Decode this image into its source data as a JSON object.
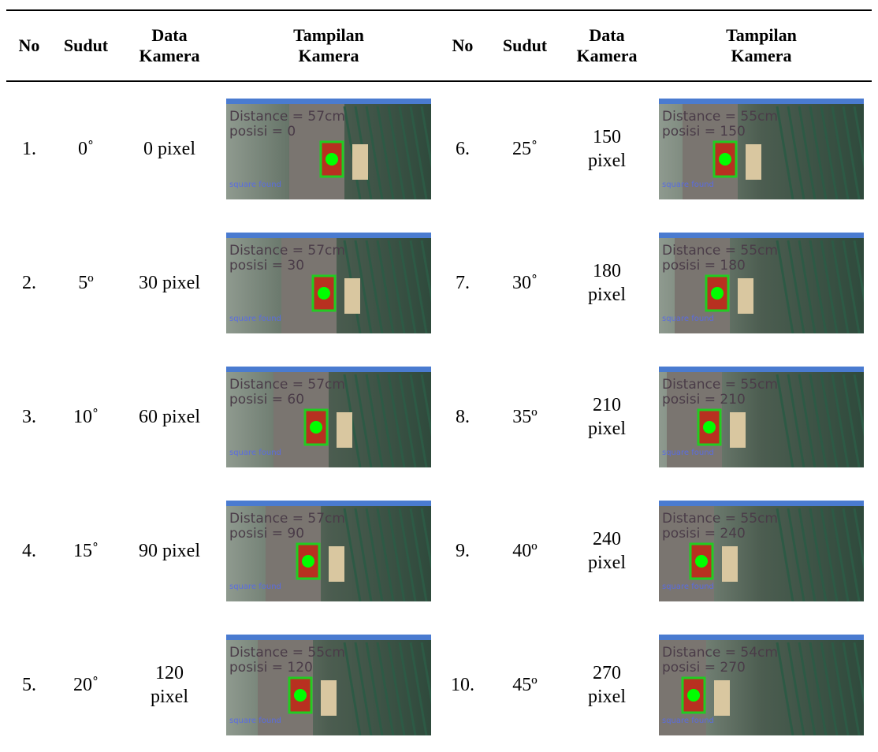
{
  "header": {
    "columns": [
      "No",
      "Sudut",
      "Data Kamera",
      "Tampilan Kamera",
      "No",
      "Sudut",
      "Data Kamera",
      "Tampilan Kamera"
    ]
  },
  "table": {
    "left": [
      {
        "no": "1.",
        "sudut": "0˚",
        "data": "0 pixel",
        "camera": {
          "distance": "Distance = 57cm",
          "posisi": "posisi = 0",
          "status": "square found"
        }
      },
      {
        "no": "2.",
        "sudut": "5º",
        "data": "30 pixel",
        "camera": {
          "distance": "Distance = 57cm",
          "posisi": "posisi = 30",
          "status": "square found"
        }
      },
      {
        "no": "3.",
        "sudut": "10˚",
        "data": "60 pixel",
        "camera": {
          "distance": "Distance = 57cm",
          "posisi": "posisi = 60",
          "status": "square found"
        }
      },
      {
        "no": "4.",
        "sudut": "15˚",
        "data": "90 pixel",
        "camera": {
          "distance": "Distance = 57cm",
          "posisi": "posisi = 90",
          "status": "square found"
        }
      },
      {
        "no": "5.",
        "sudut": "20˚",
        "data": "120 pixel",
        "camera": {
          "distance": "Distance = 55cm",
          "posisi": "posisi = 120",
          "status": "square found"
        }
      }
    ],
    "right": [
      {
        "no": "6.",
        "sudut": "25˚",
        "data": "150 pixel",
        "camera": {
          "distance": "Distance = 55cm",
          "posisi": "posisi = 150",
          "status": "square found"
        }
      },
      {
        "no": "7.",
        "sudut": "30˚",
        "data": "180 pixel",
        "camera": {
          "distance": "Distance = 55cm",
          "posisi": "posisi = 180",
          "status": "square found"
        }
      },
      {
        "no": "8.",
        "sudut": "35º",
        "data": "210 pixel",
        "camera": {
          "distance": "Distance = 55cm",
          "posisi": "posisi = 210",
          "status": "square found"
        }
      },
      {
        "no": "9.",
        "sudut": "40º",
        "data": "240 pixel",
        "camera": {
          "distance": "Distance = 55cm",
          "posisi": "posisi = 240",
          "status": "square found"
        }
      },
      {
        "no": "10.",
        "sudut": "45º",
        "data": "270 pixel",
        "camera": {
          "distance": "Distance = 54cm",
          "posisi": "posisi = 270",
          "status": "square found"
        }
      }
    ]
  }
}
